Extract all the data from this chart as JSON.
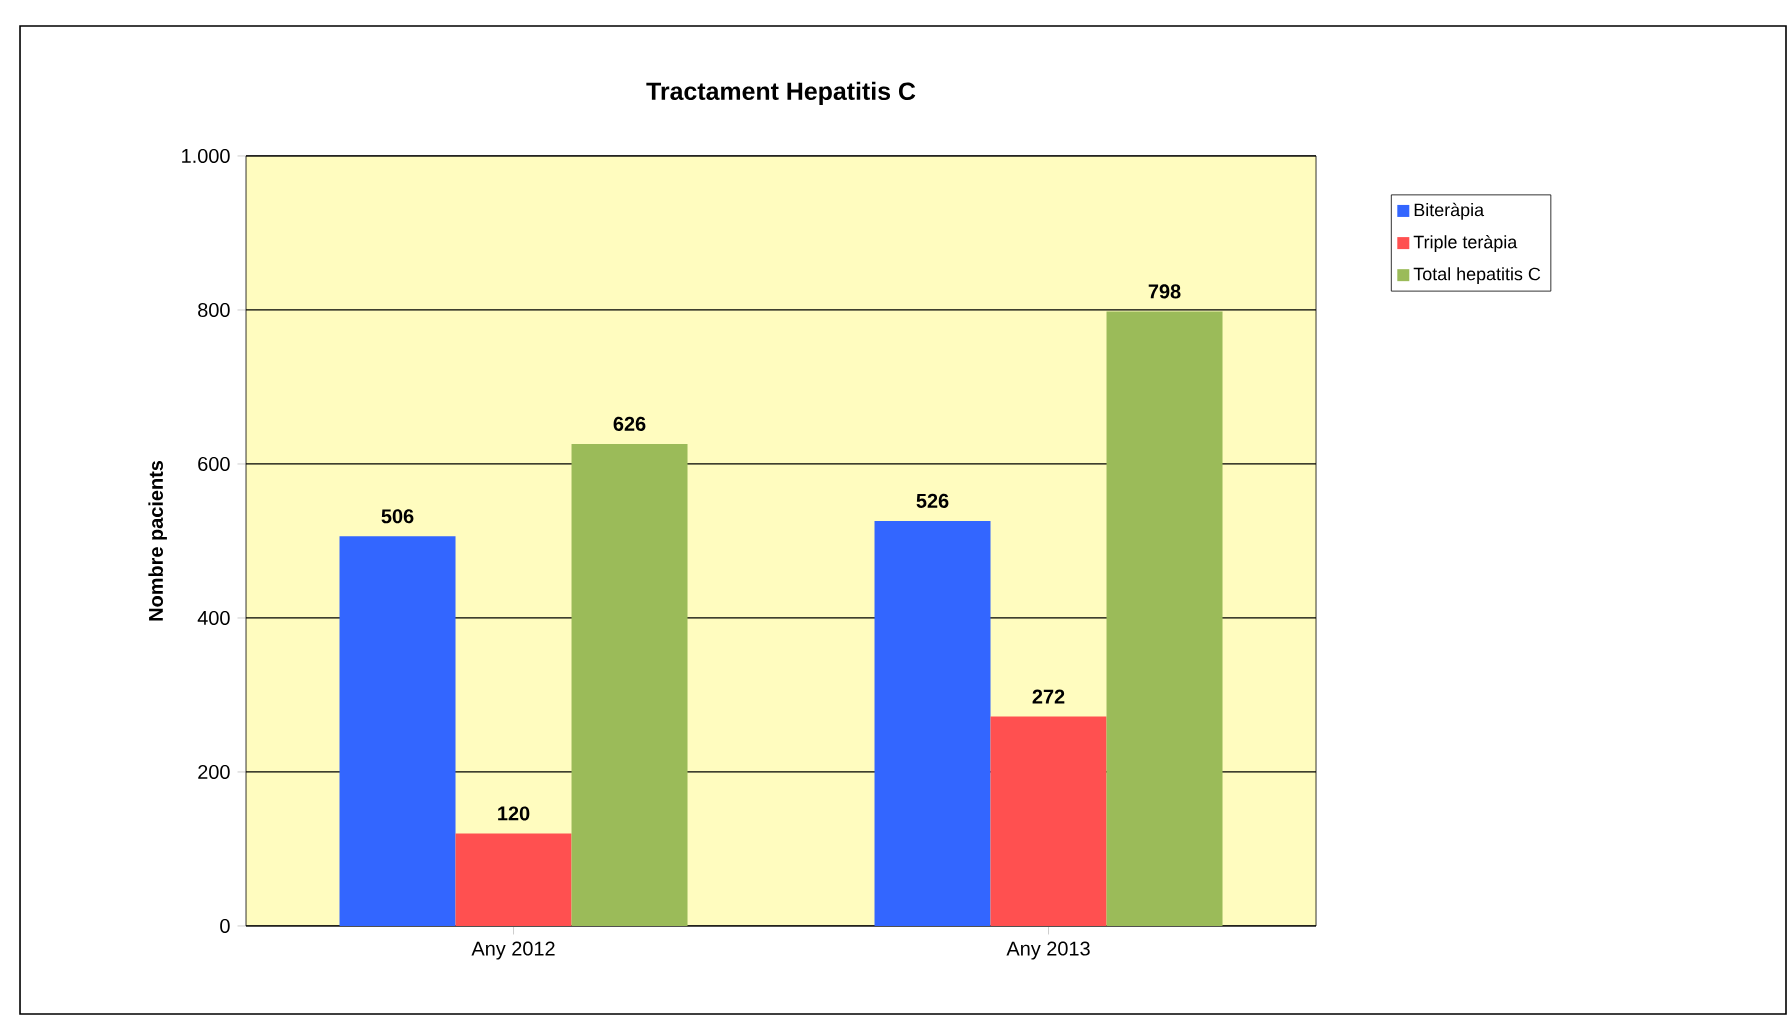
{
  "chart_data": {
    "type": "bar",
    "title": "Tractament Hepatitis C",
    "ylabel": "Nombre pacients",
    "categories": [
      "Any 2012",
      "Any 2013"
    ],
    "series": [
      {
        "name": "Biteràpia",
        "color": "#3366ff",
        "values": [
          506,
          526
        ]
      },
      {
        "name": "Triple teràpia",
        "color": "#ff5050",
        "values": [
          120,
          272
        ]
      },
      {
        "name": "Total hepatitis C",
        "color": "#9bbb59",
        "values": [
          626,
          798
        ]
      }
    ],
    "ylim": [
      0,
      1000
    ],
    "yticks": [
      0,
      200,
      400,
      600,
      800,
      {
        "value": 1000,
        "label": "1.000"
      }
    ],
    "grid": "y",
    "legend": "right",
    "data_labels": true
  }
}
